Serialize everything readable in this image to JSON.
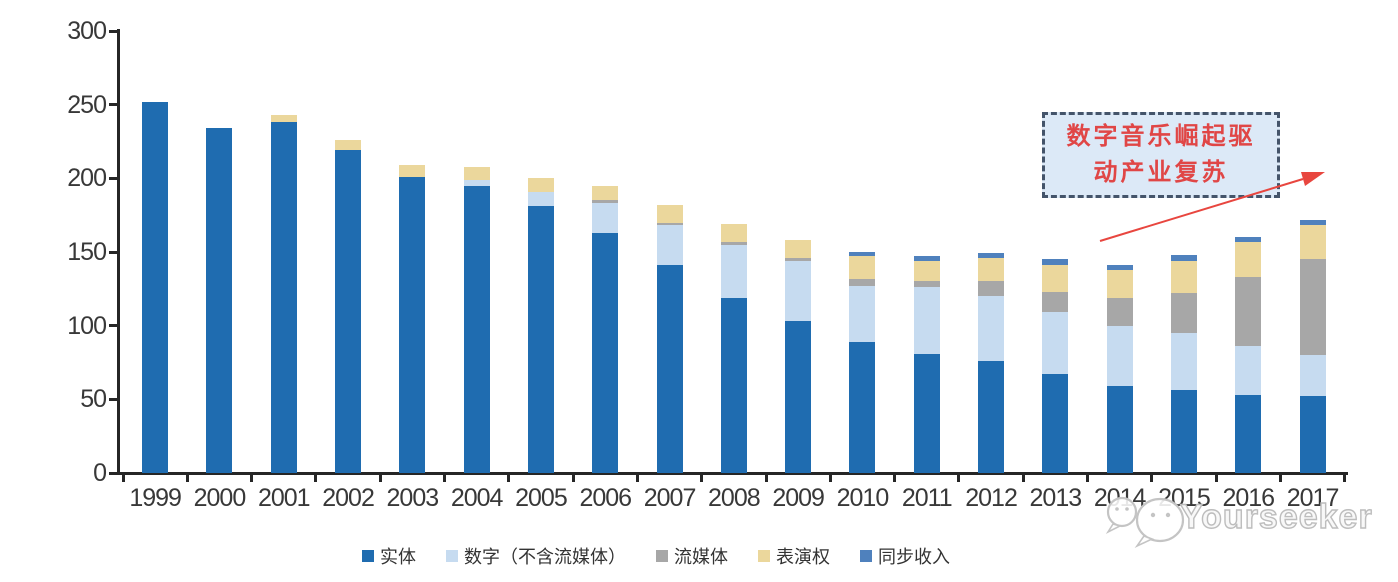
{
  "chart_data": {
    "type": "bar",
    "stacked": true,
    "title": "",
    "xlabel": "",
    "ylabel": "",
    "ylim": [
      0,
      300
    ],
    "yticks": [
      0,
      50,
      100,
      150,
      200,
      250,
      300
    ],
    "grid": false,
    "legend_position": "bottom",
    "categories": [
      "1999",
      "2000",
      "2001",
      "2002",
      "2003",
      "2004",
      "2005",
      "2006",
      "2007",
      "2008",
      "2009",
      "2010",
      "2011",
      "2012",
      "2013",
      "2014",
      "2015",
      "2016",
      "2017"
    ],
    "series": [
      {
        "name": "实体",
        "color": "#1F6CB0",
        "values": [
          252,
          234,
          238,
          219,
          201,
          195,
          181,
          163,
          141,
          119,
          103,
          89,
          81,
          76,
          67,
          59,
          56,
          53,
          52
        ]
      },
      {
        "name": "数字（不含流媒体）",
        "color": "#C6DBF0",
        "values": [
          0,
          0,
          0,
          0,
          0,
          4,
          10,
          20,
          27,
          36,
          41,
          38,
          45,
          44,
          42,
          41,
          39,
          33,
          28
        ]
      },
      {
        "name": "流媒体",
        "color": "#A7A7A7",
        "values": [
          0,
          0,
          0,
          0,
          0,
          0,
          0,
          2,
          2,
          2,
          2,
          5,
          4,
          10,
          14,
          19,
          27,
          47,
          65
        ]
      },
      {
        "name": "表演权",
        "color": "#EBD79C",
        "values": [
          0,
          0,
          5,
          7,
          8,
          9,
          9,
          10,
          12,
          12,
          12,
          15,
          14,
          16,
          18,
          19,
          22,
          24,
          23
        ]
      },
      {
        "name": "同步收入",
        "color": "#4F81BD",
        "values": [
          0,
          0,
          0,
          0,
          0,
          0,
          0,
          0,
          0,
          0,
          0,
          3,
          3,
          3,
          4,
          3,
          4,
          3,
          4
        ]
      }
    ]
  },
  "annotation": {
    "line1": "数字音乐崛起驱",
    "line2": "动产业复苏",
    "box_fill": "#DCE9F7",
    "box_border": "#44546A",
    "text_color": "#E04646",
    "arrow_color": "#E8463F"
  },
  "watermark": {
    "text": "Yourseeker",
    "logo": "chat-bubbles-logo",
    "color": "#C4C4C4"
  },
  "axis": {
    "line_color": "#262626",
    "label_color": "#383838"
  }
}
